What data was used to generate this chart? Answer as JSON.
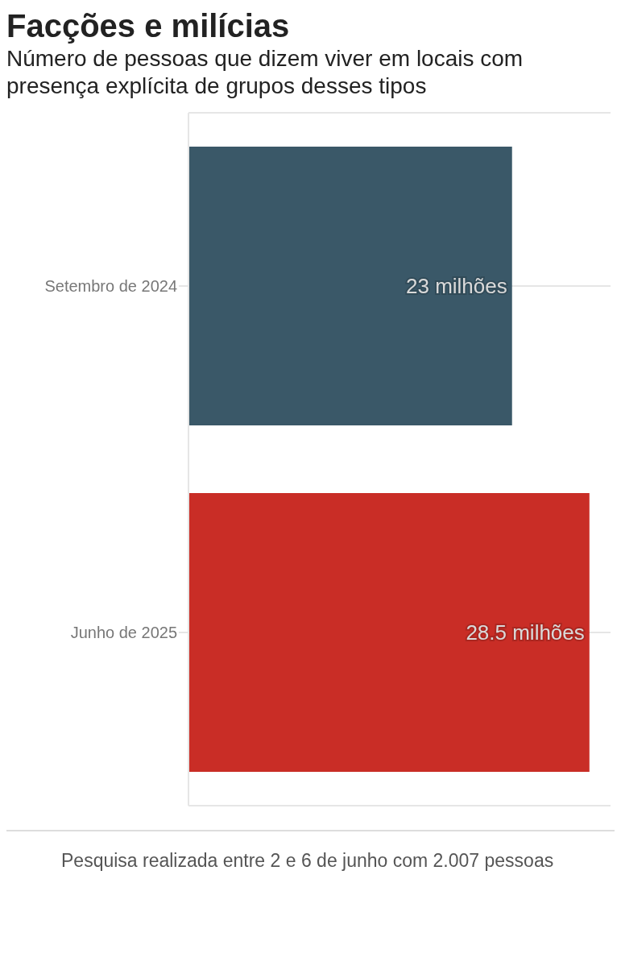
{
  "chart_data": {
    "type": "bar",
    "orientation": "horizontal",
    "title": "Facções e milícias",
    "subtitle": "Número de pessoas que dizem viver em locais com presença explícita de grupos desses tipos",
    "categories": [
      "Setembro de 2024",
      "Junho de 2025"
    ],
    "values": [
      23,
      28.5
    ],
    "colors": [
      "#3a5868",
      "#c92d26"
    ],
    "value_labels": [
      "23 milhões",
      "28.5 milhões"
    ],
    "xlim": [
      0,
      30
    ],
    "tick_labels": "y",
    "grid": "y",
    "annotations": [
      "Pesquisa realizada entre 2 e 6 de junho com 2.007 pessoas"
    ]
  }
}
